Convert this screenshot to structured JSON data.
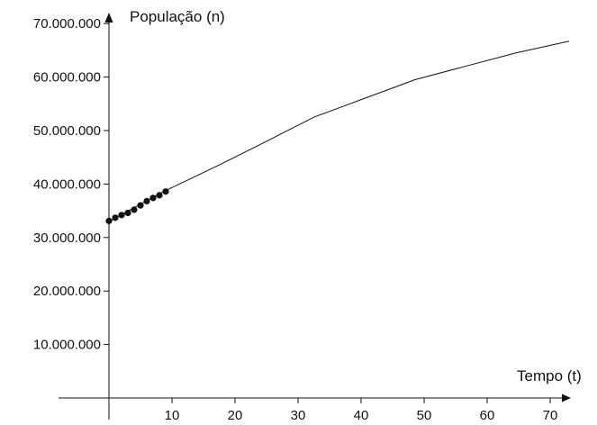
{
  "chart_data": {
    "type": "line",
    "title": "",
    "xlabel": "Tempo (t)",
    "ylabel": "População (n)",
    "xlim": [
      -8,
      73
    ],
    "ylim": [
      0,
      70000000
    ],
    "x_ticks": [
      10,
      20,
      30,
      40,
      50,
      60,
      70
    ],
    "x_tick_labels": [
      "10",
      "20",
      "30",
      "40",
      "50",
      "60",
      "70"
    ],
    "y_ticks": [
      10000000,
      20000000,
      30000000,
      40000000,
      50000000,
      60000000,
      70000000
    ],
    "y_tick_labels": [
      "10.000.000",
      "20.000.000",
      "30.000.000",
      "40.000.000",
      "50.000.000",
      "60.000.000",
      "70.000.000"
    ],
    "grid": false,
    "legend": "none",
    "line_color": "#111111",
    "series": [
      {
        "kind": "line",
        "x": [
          0,
          8.5,
          16.5,
          24.5,
          32.5,
          40.5,
          48.5,
          56.5,
          64.5,
          73
        ],
        "y": [
          33000000,
          38500000,
          43000000,
          47700000,
          52500000,
          56000000,
          59500000,
          62000000,
          64500000,
          66700000
        ]
      },
      {
        "kind": "points",
        "x": [
          0,
          1,
          2,
          3,
          4,
          5,
          6,
          7,
          8,
          9
        ],
        "y": [
          33100000,
          33700000,
          34200000,
          34600000,
          35200000,
          36000000,
          36800000,
          37400000,
          37900000,
          38600000
        ]
      }
    ]
  }
}
